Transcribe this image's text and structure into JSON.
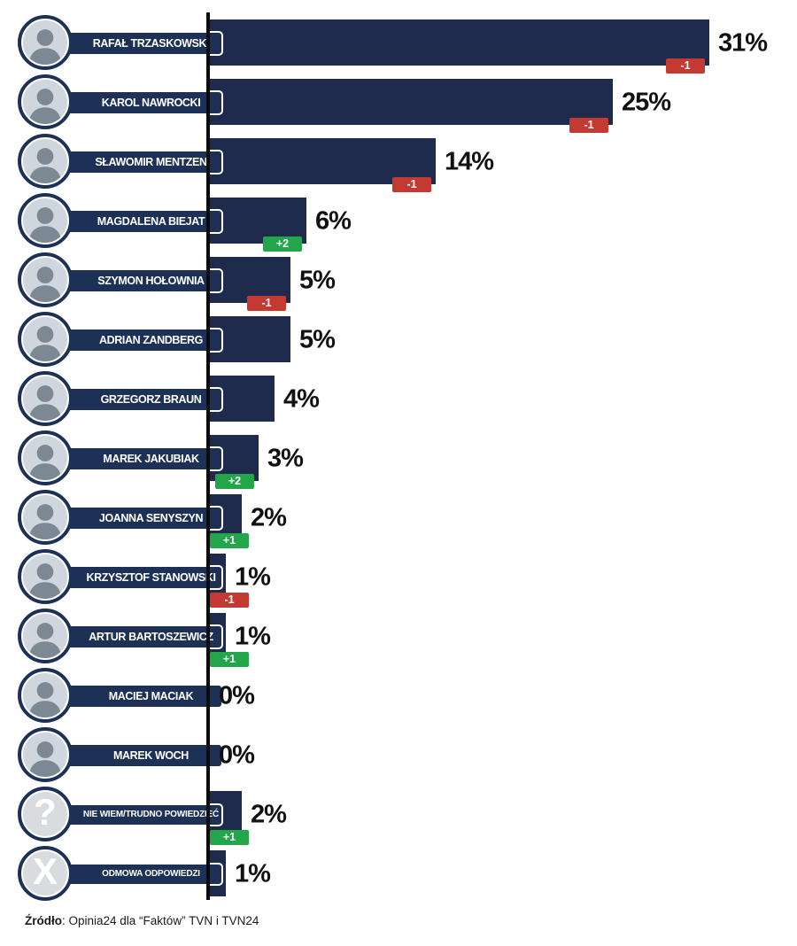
{
  "chart_data": {
    "type": "bar",
    "orientation": "horizontal",
    "unit": "%",
    "xlim": [
      0,
      31
    ],
    "legend": "none",
    "grid": false,
    "categories": [
      "RAFAŁ TRZASKOWSKI",
      "KAROL NAWROCKI",
      "SŁAWOMIR MENTZEN",
      "MAGDALENA BIEJAT",
      "SZYMON HOŁOWNIA",
      "ADRIAN ZANDBERG",
      "GRZEGORZ BRAUN",
      "MAREK JAKUBIAK",
      "JOANNA SENYSZYN",
      "KRZYSZTOF STANOWSKI",
      "ARTUR BARTOSZEWICZ",
      "MACIEJ MACIAK",
      "MAREK WOCH",
      "NIE WIEM/TRUDNO POWIEDZIEĆ",
      "ODMOWA ODPOWIEDZI"
    ],
    "values": [
      31,
      25,
      14,
      6,
      5,
      5,
      4,
      3,
      2,
      1,
      1,
      0,
      0,
      2,
      1
    ],
    "changes": [
      "-1",
      "-1",
      "-1",
      "+2",
      "-1",
      null,
      null,
      "+2",
      "+1",
      "-1",
      "+1",
      null,
      null,
      "+1",
      null
    ],
    "rows": [
      {
        "label": "RAFAŁ TRZASKOWSKI",
        "value": 31,
        "value_label": "31%",
        "change": "-1",
        "change_type": "negative",
        "avatar": "photo"
      },
      {
        "label": "KAROL NAWROCKI",
        "value": 25,
        "value_label": "25%",
        "change": "-1",
        "change_type": "negative",
        "avatar": "photo"
      },
      {
        "label": "SŁAWOMIR MENTZEN",
        "value": 14,
        "value_label": "14%",
        "change": "-1",
        "change_type": "negative",
        "avatar": "photo"
      },
      {
        "label": "MAGDALENA BIEJAT",
        "value": 6,
        "value_label": "6%",
        "change": "+2",
        "change_type": "positive",
        "avatar": "photo"
      },
      {
        "label": "SZYMON HOŁOWNIA",
        "value": 5,
        "value_label": "5%",
        "change": "-1",
        "change_type": "negative",
        "avatar": "photo"
      },
      {
        "label": "ADRIAN ZANDBERG",
        "value": 5,
        "value_label": "5%",
        "change": null,
        "change_type": null,
        "avatar": "photo"
      },
      {
        "label": "GRZEGORZ BRAUN",
        "value": 4,
        "value_label": "4%",
        "change": null,
        "change_type": null,
        "avatar": "photo"
      },
      {
        "label": "MAREK JAKUBIAK",
        "value": 3,
        "value_label": "3%",
        "change": "+2",
        "change_type": "positive",
        "avatar": "photo"
      },
      {
        "label": "JOANNA SENYSZYN",
        "value": 2,
        "value_label": "2%",
        "change": "+1",
        "change_type": "positive",
        "avatar": "photo"
      },
      {
        "label": "KRZYSZTOF STANOWSKI",
        "value": 1,
        "value_label": "1%",
        "change": "-1",
        "change_type": "negative",
        "avatar": "photo"
      },
      {
        "label": "ARTUR BARTOSZEWICZ",
        "value": 1,
        "value_label": "1%",
        "change": "+1",
        "change_type": "positive",
        "avatar": "photo"
      },
      {
        "label": "MACIEJ MACIAK",
        "value": 0,
        "value_label": "0%",
        "change": null,
        "change_type": null,
        "avatar": "photo"
      },
      {
        "label": "MAREK WOCH",
        "value": 0,
        "value_label": "0%",
        "change": null,
        "change_type": null,
        "avatar": "photo"
      },
      {
        "label": "NIE WIEM/TRUDNO POWIEDZIEĆ",
        "value": 2,
        "value_label": "2%",
        "change": "+1",
        "change_type": "positive",
        "avatar": "question-mark",
        "glyph": "?",
        "small": true
      },
      {
        "label": "ODMOWA ODPOWIEDZI",
        "value": 1,
        "value_label": "1%",
        "change": null,
        "change_type": null,
        "avatar": "x-mark",
        "glyph": "X",
        "small": true
      }
    ]
  },
  "footer": {
    "source_label": "Źródło",
    "source_rest": ": Opinia24 dla “Faktów” TVN i TVN24"
  },
  "colors": {
    "bar": "#1e2b4d",
    "pill": "#1d3156",
    "positive": "#23a54a",
    "negative": "#c43a33",
    "axis": "#0b0b0b",
    "glyph_bg": "#d9dcdf"
  }
}
